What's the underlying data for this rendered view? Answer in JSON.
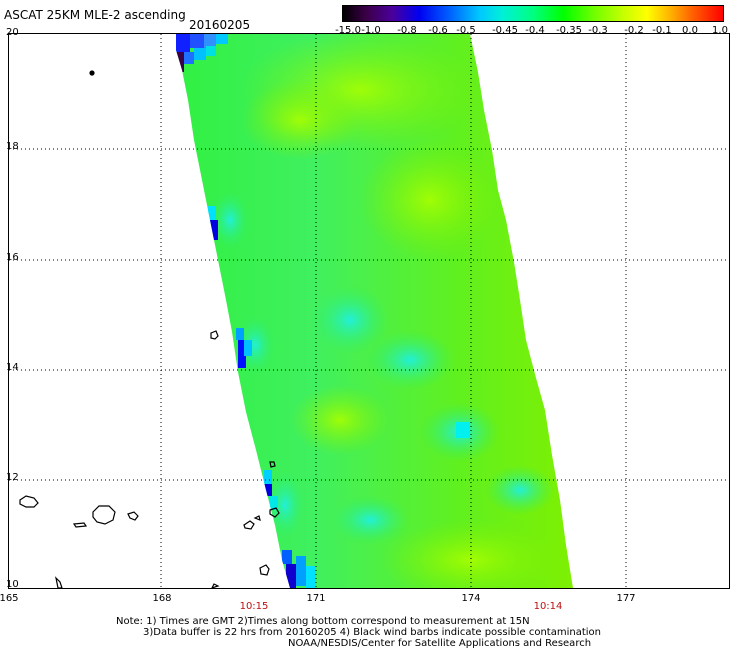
{
  "header": {
    "title": "ASCAT 25KM MLE-2 ascending",
    "date": "20160205"
  },
  "colorbar": {
    "ticks": [
      "-15.0",
      "-1.0",
      "-0.8",
      "-0.6",
      "-0.5",
      "-0.45",
      "-0.4",
      "-0.35",
      "-0.3",
      "-0.2",
      "-0.1",
      "0.0",
      "1.0"
    ]
  },
  "map": {
    "lat_labels": [
      "20",
      "18",
      "16",
      "14",
      "12",
      "10"
    ],
    "lon_labels": [
      "165",
      "168",
      "171",
      "174",
      "177"
    ],
    "time_labels": [
      "10:15",
      "10:14"
    ]
  },
  "notes": {
    "line1": "Note: 1) Times are GMT 2)Times along bottom correspond to measurement at 15N",
    "line2": "3)Data buffer is 22 hrs from 20160205 4) Black wind barbs indicate possible contamination",
    "line3": "NOAA/NESDIS/Center for Satellite Applications and Research"
  },
  "colors": {
    "swath_main": "#7cf000",
    "swath_cyan": "#00f0c0",
    "swath_blue": "#0040ff",
    "time_text": "#bb1111"
  }
}
